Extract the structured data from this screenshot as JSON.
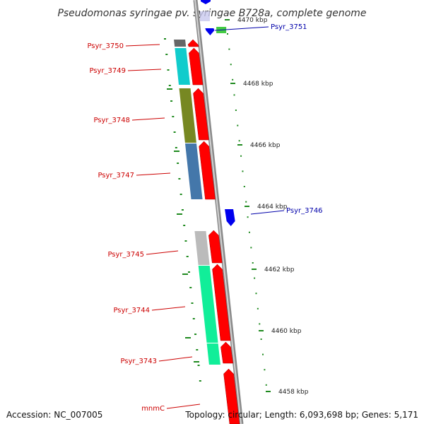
{
  "title": "Pseudomonas syringae pv. syringae B728a, complete genome",
  "accession_text": "Accession: NC_007005",
  "topology_text": "Topology: circular; Length: 6,093,698 bp; Genes: 5,171",
  "colors": {
    "forward_gene": "#ff0000",
    "reverse_gene": "#0000ee",
    "backbone": "#8a8a8a",
    "ticks": "#1f8a1f",
    "forward_label": "#cc0000",
    "reverse_label": "#0000aa"
  },
  "scale": {
    "unit": "kbp",
    "labels": [
      "4470 kbp",
      "4468 kbp",
      "4466 kbp",
      "4464 kbp",
      "4462 kbp",
      "4460 kbp",
      "4458 kbp"
    ]
  },
  "genes": [
    {
      "label": "Psyr_3751",
      "strand": "reverse",
      "cog_color": "#44cc44"
    },
    {
      "label": "Psyr_3750",
      "strand": "forward",
      "cog_color": "#666666"
    },
    {
      "label": "Psyr_3749",
      "strand": "forward",
      "cog_color": "#11cccc"
    },
    {
      "label": "Psyr_3748",
      "strand": "forward",
      "cog_color": "#778822"
    },
    {
      "label": "Psyr_3747",
      "strand": "forward",
      "cog_color": "#4477aa"
    },
    {
      "label": "Psyr_3746",
      "strand": "reverse",
      "cog_color": ""
    },
    {
      "label": "Psyr_3745",
      "strand": "forward",
      "cog_color": "#bbbbbb"
    },
    {
      "label": "Psyr_3744",
      "strand": "forward",
      "cog_color": "#11ee99"
    },
    {
      "label": "Psyr_3743",
      "strand": "forward",
      "cog_color": "#11ee99"
    },
    {
      "label": "mnmC",
      "strand": "forward",
      "cog_color": ""
    }
  ]
}
